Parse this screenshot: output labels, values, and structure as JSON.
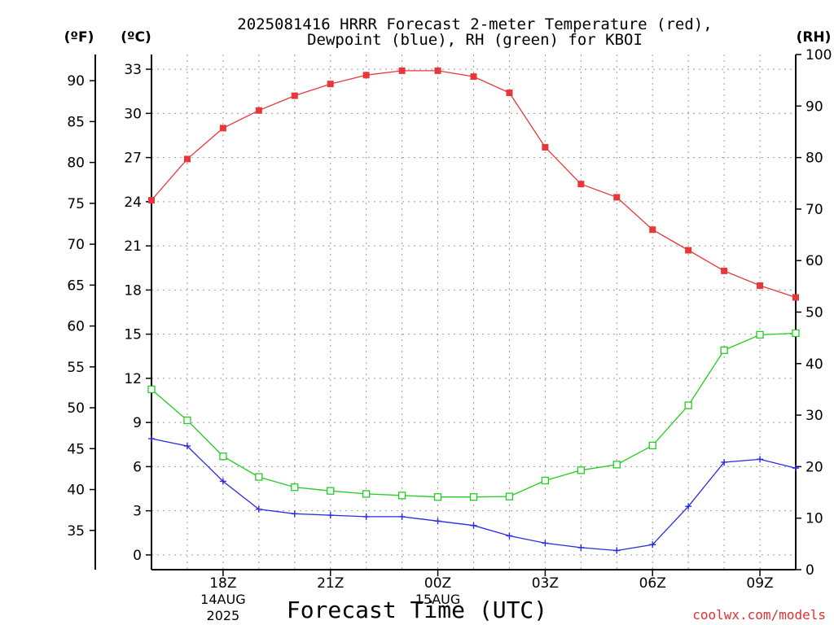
{
  "chart_data": {
    "type": "line",
    "title_line1": "2025081416 HRRR Forecast 2-meter Temperature (red),",
    "title_line2": "Dewpoint (blue), RH (green) for KBOI",
    "unit_labels": {
      "fahrenheit": "(ºF)",
      "celsius": "(ºC)",
      "rh": "(RH)"
    },
    "xlabel": "Forecast Time (UTC)",
    "watermark": "coolwx.com/models",
    "x_hours": [
      16,
      17,
      18,
      19,
      20,
      21,
      22,
      23,
      24,
      25,
      26,
      27,
      28,
      29,
      30,
      31,
      32,
      33,
      34
    ],
    "x_ticks": [
      {
        "hour": 18,
        "label": "18Z",
        "date": "14AUG",
        "year": "2025"
      },
      {
        "hour": 21,
        "label": "21Z"
      },
      {
        "hour": 24,
        "label": "00Z",
        "date": "15AUG"
      },
      {
        "hour": 27,
        "label": "03Z"
      },
      {
        "hour": 30,
        "label": "06Z"
      },
      {
        "hour": 33,
        "label": "09Z"
      }
    ],
    "xlim": [
      16,
      34
    ],
    "celsius_axis": {
      "ylim": [
        -1,
        34
      ],
      "ticks": [
        0,
        3,
        6,
        9,
        12,
        15,
        18,
        21,
        24,
        27,
        30,
        33
      ]
    },
    "fahrenheit_axis": {
      "ticks": [
        35,
        40,
        45,
        50,
        55,
        60,
        65,
        70,
        75,
        80,
        85,
        90
      ]
    },
    "rh_axis": {
      "ylim": [
        0,
        100
      ],
      "ticks": [
        0,
        10,
        20,
        30,
        40,
        50,
        60,
        70,
        80,
        90,
        100
      ]
    },
    "grid": true,
    "series": [
      {
        "key": "temperature",
        "axis": "celsius",
        "color": "#e8373a",
        "marker": "filled-square",
        "values": [
          24.1,
          26.9,
          29.0,
          30.2,
          31.2,
          32.0,
          32.6,
          32.9,
          32.9,
          32.5,
          31.4,
          27.7,
          25.2,
          24.3,
          22.1,
          20.7,
          19.3,
          18.3,
          17.5
        ]
      },
      {
        "key": "dewpoint",
        "axis": "celsius",
        "color": "#2a2ae0",
        "marker": "plus",
        "values": [
          7.9,
          7.4,
          5.0,
          3.1,
          2.8,
          2.7,
          2.6,
          2.6,
          2.3,
          2.0,
          1.3,
          0.8,
          0.5,
          0.3,
          0.7,
          3.3,
          6.3,
          6.5,
          5.9
        ]
      },
      {
        "key": "rh",
        "axis": "rh",
        "color": "#22cc22",
        "marker": "open-square",
        "values": [
          35,
          29,
          22,
          18,
          16,
          15.3,
          14.7,
          14.4,
          14.1,
          14.1,
          14.2,
          17.3,
          19.3,
          20.4,
          24.1,
          31.9,
          42.6,
          45.6,
          45.9
        ]
      }
    ]
  }
}
